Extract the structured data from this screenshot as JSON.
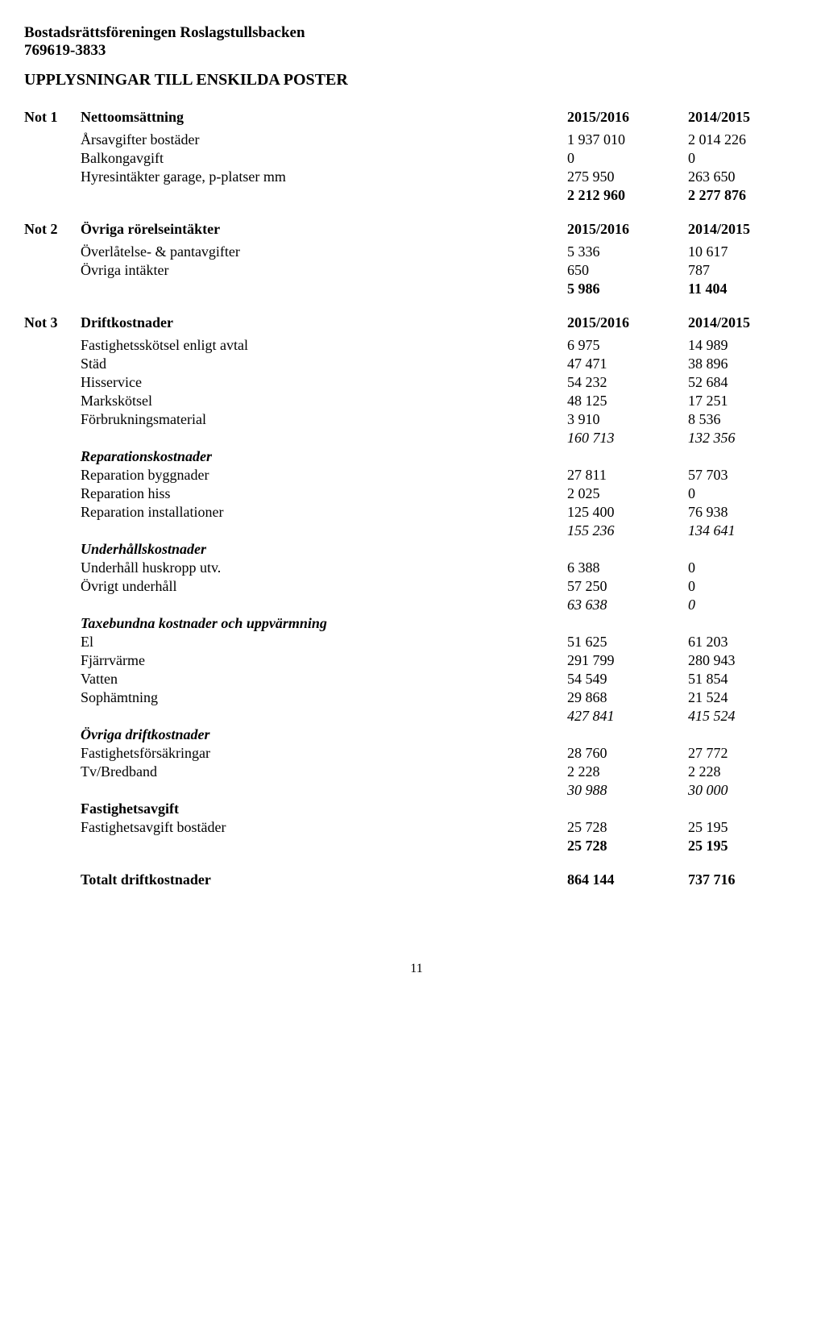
{
  "header": {
    "name": "Bostadsrättsföreningen Roslagstullsbacken",
    "org": "769619-3833",
    "title": "UPPLYSNINGAR TILL ENSKILDA POSTER"
  },
  "notes": [
    {
      "id": "Not 1",
      "title": "Nettoomsättning",
      "y1": "2015/2016",
      "y2": "2014/2015",
      "rows": [
        {
          "label": "Årsavgifter bostäder",
          "v1": "1 937 010",
          "v2": "2 014 226"
        },
        {
          "label": "Balkongavgift",
          "v1": "0",
          "v2": "0"
        },
        {
          "label": "Hyresintäkter garage, p-platser mm",
          "v1": "275 950",
          "v2": "263 650"
        },
        {
          "label": "",
          "v1": "2 212 960",
          "v2": "2 277 876",
          "bold": true
        }
      ]
    },
    {
      "id": "Not 2",
      "title": "Övriga rörelseintäkter",
      "y1": "2015/2016",
      "y2": "2014/2015",
      "rows": [
        {
          "label": "Överlåtelse- & pantavgifter",
          "v1": "5 336",
          "v2": "10 617"
        },
        {
          "label": "Övriga intäkter",
          "v1": "650",
          "v2": "787"
        },
        {
          "label": "",
          "v1": "5 986",
          "v2": "11 404",
          "bold": true
        }
      ]
    },
    {
      "id": "Not 3",
      "title": "Driftkostnader",
      "y1": "2015/2016",
      "y2": "2014/2015",
      "rows": [
        {
          "label": "Fastighetsskötsel enligt avtal",
          "v1": "6 975",
          "v2": "14 989"
        },
        {
          "label": "Städ",
          "v1": "47 471",
          "v2": "38 896"
        },
        {
          "label": "Hisservice",
          "v1": "54 232",
          "v2": "52 684"
        },
        {
          "label": "Markskötsel",
          "v1": "48 125",
          "v2": "17 251"
        },
        {
          "label": "Förbrukningsmaterial",
          "v1": "3 910",
          "v2": "8 536"
        },
        {
          "label": "",
          "v1": "160 713",
          "v2": "132 356",
          "subtotal": true
        },
        {
          "label": "Reparationskostnader",
          "subsection": true
        },
        {
          "label": "Reparation byggnader",
          "v1": "27 811",
          "v2": "57 703"
        },
        {
          "label": "Reparation hiss",
          "v1": "2 025",
          "v2": "0"
        },
        {
          "label": "Reparation installationer",
          "v1": "125 400",
          "v2": "76 938"
        },
        {
          "label": "",
          "v1": "155 236",
          "v2": "134 641",
          "subtotal": true
        },
        {
          "label": "Underhållskostnader",
          "subsection": true
        },
        {
          "label": "Underhåll huskropp utv.",
          "v1": "6 388",
          "v2": "0"
        },
        {
          "label": "Övrigt underhåll",
          "v1": "57 250",
          "v2": "0"
        },
        {
          "label": "",
          "v1": "63 638",
          "v2": "0",
          "subtotal": true
        },
        {
          "label": "Taxebundna kostnader och uppvärmning",
          "subsection": true
        },
        {
          "label": "El",
          "v1": "51 625",
          "v2": "61 203"
        },
        {
          "label": "Fjärrvärme",
          "v1": "291 799",
          "v2": "280 943"
        },
        {
          "label": "Vatten",
          "v1": "54 549",
          "v2": "51 854"
        },
        {
          "label": "Sophämtning",
          "v1": "29 868",
          "v2": "21 524"
        },
        {
          "label": "",
          "v1": "427 841",
          "v2": "415 524",
          "subtotal": true
        },
        {
          "label": "Övriga driftkostnader",
          "subsection": true
        },
        {
          "label": "Fastighetsförsäkringar",
          "v1": "28 760",
          "v2": "27 772"
        },
        {
          "label": "Tv/Bredband",
          "v1": "2 228",
          "v2": "2 228"
        },
        {
          "label": "",
          "v1": "30 988",
          "v2": "30 000",
          "subtotal": true
        },
        {
          "label": "Fastighetsavgift",
          "subsection_plain": true
        },
        {
          "label": "Fastighetsavgift bostäder",
          "v1": "25 728",
          "v2": "25 195"
        },
        {
          "label": "",
          "v1": "25 728",
          "v2": "25 195",
          "bold": true
        }
      ],
      "total": {
        "label": "Totalt driftkostnader",
        "v1": "864 144",
        "v2": "737 716"
      }
    }
  ],
  "page_number": "11"
}
